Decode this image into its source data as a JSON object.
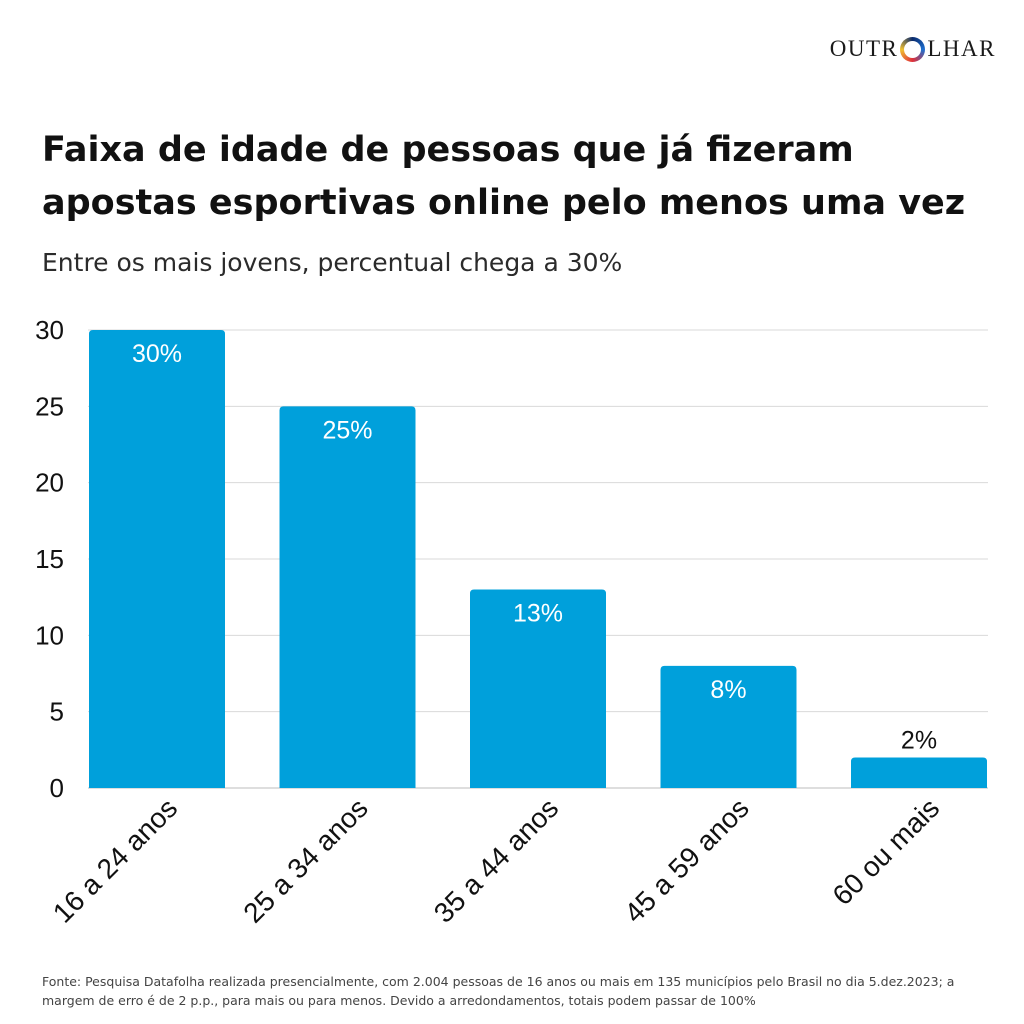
{
  "logo": {
    "text_before": "OUTR",
    "text_after": "LHAR",
    "icon": "ring-o-icon"
  },
  "header": {
    "title": "Faixa de idade de pessoas que já fizeram apostas esportivas online pelo menos uma vez",
    "subtitle": "Entre os mais jovens, percentual chega a 30%"
  },
  "chart_data": {
    "type": "bar",
    "categories": [
      "16 a 24 anos",
      "25 a 34 anos",
      "35 a 44 anos",
      "45 a 59 anos",
      "60 ou mais"
    ],
    "values": [
      30,
      25,
      13,
      8,
      2
    ],
    "value_labels": [
      "30%",
      "25%",
      "13%",
      "8%",
      "2%"
    ],
    "yticks": [
      0,
      5,
      10,
      15,
      20,
      25,
      30
    ],
    "ylim": [
      0,
      30
    ],
    "grid": true,
    "bar_color": "#00a0db"
  },
  "source": "Fonte: Pesquisa Datafolha realizada presencialmente, com 2.004 pessoas de 16 anos ou mais em 135 municípios pelo Brasil no dia 5.dez.2023; a margem de erro é de 2 p.p., para mais ou para menos. Devido a arredondamentos, totais podem passar de 100%"
}
